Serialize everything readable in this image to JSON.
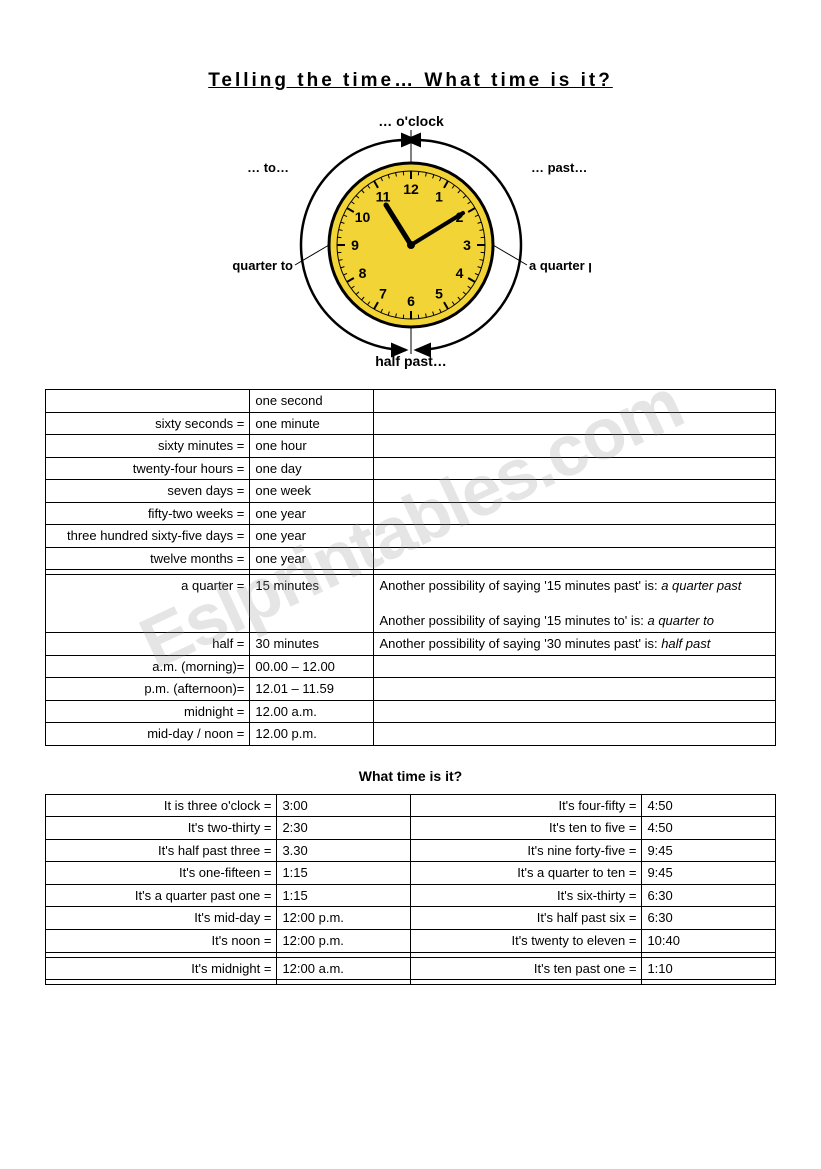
{
  "title": "Telling the time… What time is it?",
  "watermark": "Eslprintables.com",
  "clock": {
    "labels": {
      "top": "… o'clock",
      "right_top": "… past…",
      "right": "a quarter past…",
      "bottom": "half past…",
      "left": "a quarter to",
      "left_top": "… to…"
    },
    "face_color": "#f2d436",
    "ring_color": "#ffffff",
    "border_color": "#000000",
    "hour_hand": 11,
    "minute_hand": 2
  },
  "units_table": [
    {
      "left": "",
      "mid": "one second",
      "note": ""
    },
    {
      "left": "sixty seconds =",
      "mid": "one minute",
      "note": ""
    },
    {
      "left": "sixty minutes =",
      "mid": "one hour",
      "note": ""
    },
    {
      "left": "twenty-four hours =",
      "mid": "one day",
      "note": ""
    },
    {
      "left": "seven days =",
      "mid": "one week",
      "note": ""
    },
    {
      "left": "fifty-two weeks =",
      "mid": "one year",
      "note": ""
    },
    {
      "left": "three hundred sixty-five days =",
      "mid": "one year",
      "note": ""
    },
    {
      "left": "twelve months =",
      "mid": "one year",
      "note": ""
    },
    {
      "left": "",
      "mid": "",
      "note": ""
    },
    {
      "left": "a quarter =",
      "mid": "15 minutes",
      "note": "Another possibility of saying '15 minutes past' is: <i>a quarter past</i>\n\nAnother possibility of saying '15 minutes to' is: <i>a quarter to</i>"
    },
    {
      "left": "half =",
      "mid": "30 minutes",
      "note": "Another possibility of saying '30 minutes past' is: <i>half past</i>"
    },
    {
      "left": "a.m. (morning)=",
      "mid": "00.00 – 12.00",
      "note": ""
    },
    {
      "left": "p.m.  (afternoon)=",
      "mid": "12.01 – 11.59",
      "note": ""
    },
    {
      "left": "midnight =",
      "mid": "12.00 a.m.",
      "note": ""
    },
    {
      "left": "mid-day / noon =",
      "mid": "12.00 p.m.",
      "note": ""
    }
  ],
  "subtitle": "What time is it?",
  "times_table": [
    {
      "l1": "It is three o'clock =",
      "l2": "3:00",
      "r1": "It's four-fifty =",
      "r2": "4:50"
    },
    {
      "l1": "It's two-thirty =",
      "l2": "2:30",
      "r1": "It's ten to five =",
      "r2": "4:50"
    },
    {
      "l1": "It's half past three =",
      "l2": "3.30",
      "r1": "It's nine forty-five =",
      "r2": "9:45"
    },
    {
      "l1": "It's one-fifteen =",
      "l2": "1:15",
      "r1": "It's a quarter to ten =",
      "r2": "9:45"
    },
    {
      "l1": "It's a quarter past one =",
      "l2": "1:15",
      "r1": "It's six-thirty =",
      "r2": "6:30"
    },
    {
      "l1": "It's mid-day =",
      "l2": "12:00 p.m.",
      "r1": "It's half past six =",
      "r2": "6:30"
    },
    {
      "l1": "It's noon =",
      "l2": "12:00 p.m.",
      "r1": "It's twenty to eleven =",
      "r2": "10:40"
    },
    {
      "l1": "",
      "l2": "",
      "r1": "",
      "r2": ""
    },
    {
      "l1": "It's midnight =",
      "l2": "12:00 a.m.",
      "r1": "It's ten past one =",
      "r2": "1:10"
    },
    {
      "l1": "",
      "l2": "",
      "r1": "",
      "r2": ""
    }
  ]
}
